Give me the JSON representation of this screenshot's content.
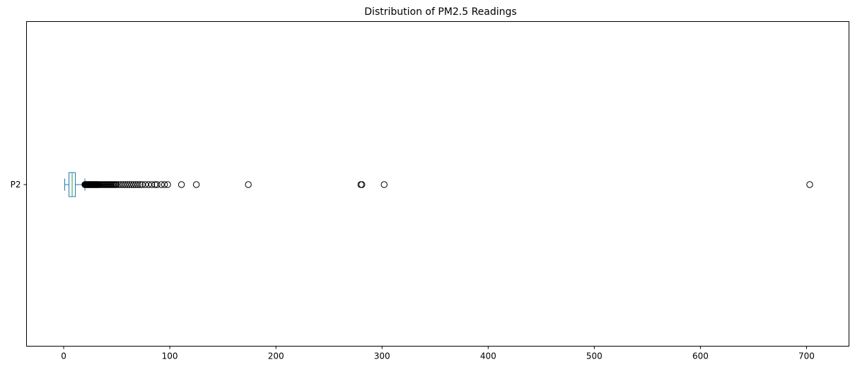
{
  "chart_data": {
    "type": "box",
    "orientation": "horizontal",
    "title": "Distribution of PM2.5 Readings",
    "xlabel": "",
    "ylabel": "",
    "xlim": [
      -35,
      740
    ],
    "x_ticks": [
      0,
      100,
      200,
      300,
      400,
      500,
      600,
      700
    ],
    "categories": [
      "P2"
    ],
    "grid": false,
    "box": {
      "whisker_low": 1,
      "q1": 5,
      "median": 8,
      "q3": 11,
      "whisker_high": 20
    },
    "outliers": [
      20,
      20.5,
      21,
      21.5,
      22,
      22.5,
      23,
      23.5,
      24,
      24.5,
      25,
      25.5,
      26,
      26.5,
      27,
      27.5,
      28,
      28.5,
      29,
      29.5,
      30,
      30.5,
      31,
      31.5,
      32,
      32.5,
      33,
      34,
      35,
      36,
      37,
      38,
      39,
      40,
      41,
      42,
      43,
      44,
      45,
      46,
      47,
      48,
      49,
      50,
      52,
      54,
      56,
      58,
      60,
      62,
      64,
      66,
      68,
      70,
      72,
      74,
      77,
      80,
      83,
      86,
      88,
      92,
      95,
      98,
      111,
      125,
      174,
      280,
      281,
      302,
      703
    ],
    "colors": {
      "box": "#1f77b4",
      "median": "#2ca02c",
      "outlier_edge": "#000000",
      "axis": "#000000"
    }
  }
}
